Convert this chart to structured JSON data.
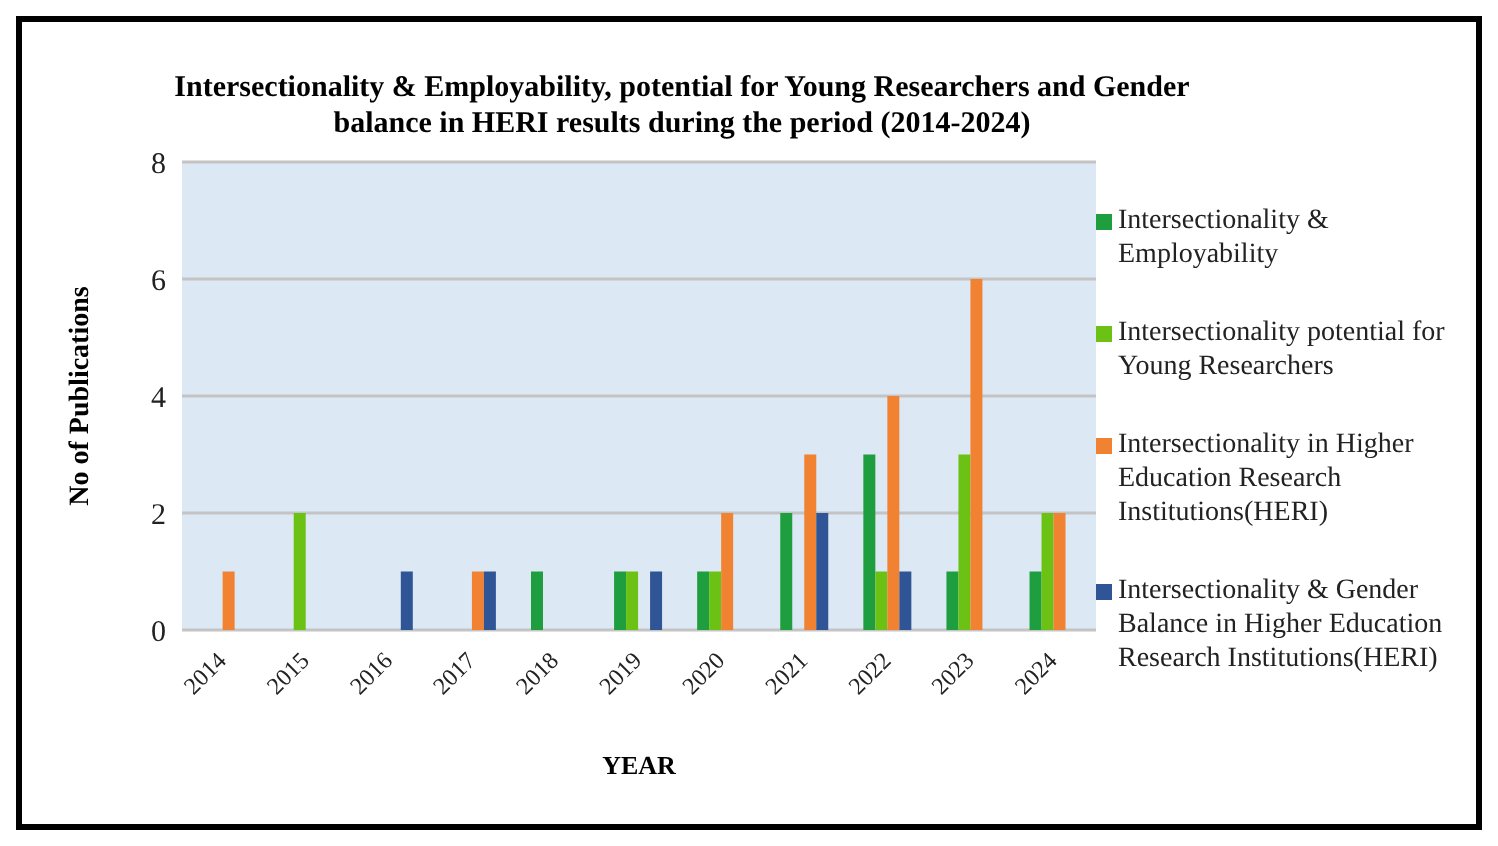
{
  "chart_data": {
    "type": "bar",
    "title": "Intersectionality & Employability, potential for Young Researchers and Gender balance in HERI results during the period (2014-2024)",
    "xlabel": "YEAR",
    "ylabel": "No of  Publications",
    "categories": [
      "2014",
      "2015",
      "2016",
      "2017",
      "2018",
      "2019",
      "2020",
      "2021",
      "2022",
      "2023",
      "2024"
    ],
    "series": [
      {
        "name": "Intersectionality & Employability",
        "color": "#1e9e3e",
        "values": [
          0,
          0,
          0,
          0,
          1,
          1,
          1,
          2,
          3,
          1,
          1
        ]
      },
      {
        "name": "Intersectionality potential for Young Researchers",
        "color": "#6cc214",
        "values": [
          0,
          2,
          0,
          0,
          0,
          1,
          1,
          0,
          1,
          3,
          2
        ]
      },
      {
        "name": "Intersectionality in Higher Education Research Institutions(HERI)",
        "color": "#f08232",
        "values": [
          1,
          0,
          0,
          1,
          0,
          0,
          2,
          3,
          4,
          6,
          2
        ]
      },
      {
        "name": "Intersectionality & Gender Balance  in Higher Education Research Institutions(HERI)",
        "color": "#2f5597",
        "values": [
          0,
          0,
          1,
          1,
          0,
          1,
          0,
          2,
          1,
          0,
          0
        ]
      }
    ],
    "ylim": [
      0,
      8
    ],
    "yticks": [
      0,
      2,
      4,
      6,
      8
    ],
    "grid": "y",
    "legend": "right"
  }
}
